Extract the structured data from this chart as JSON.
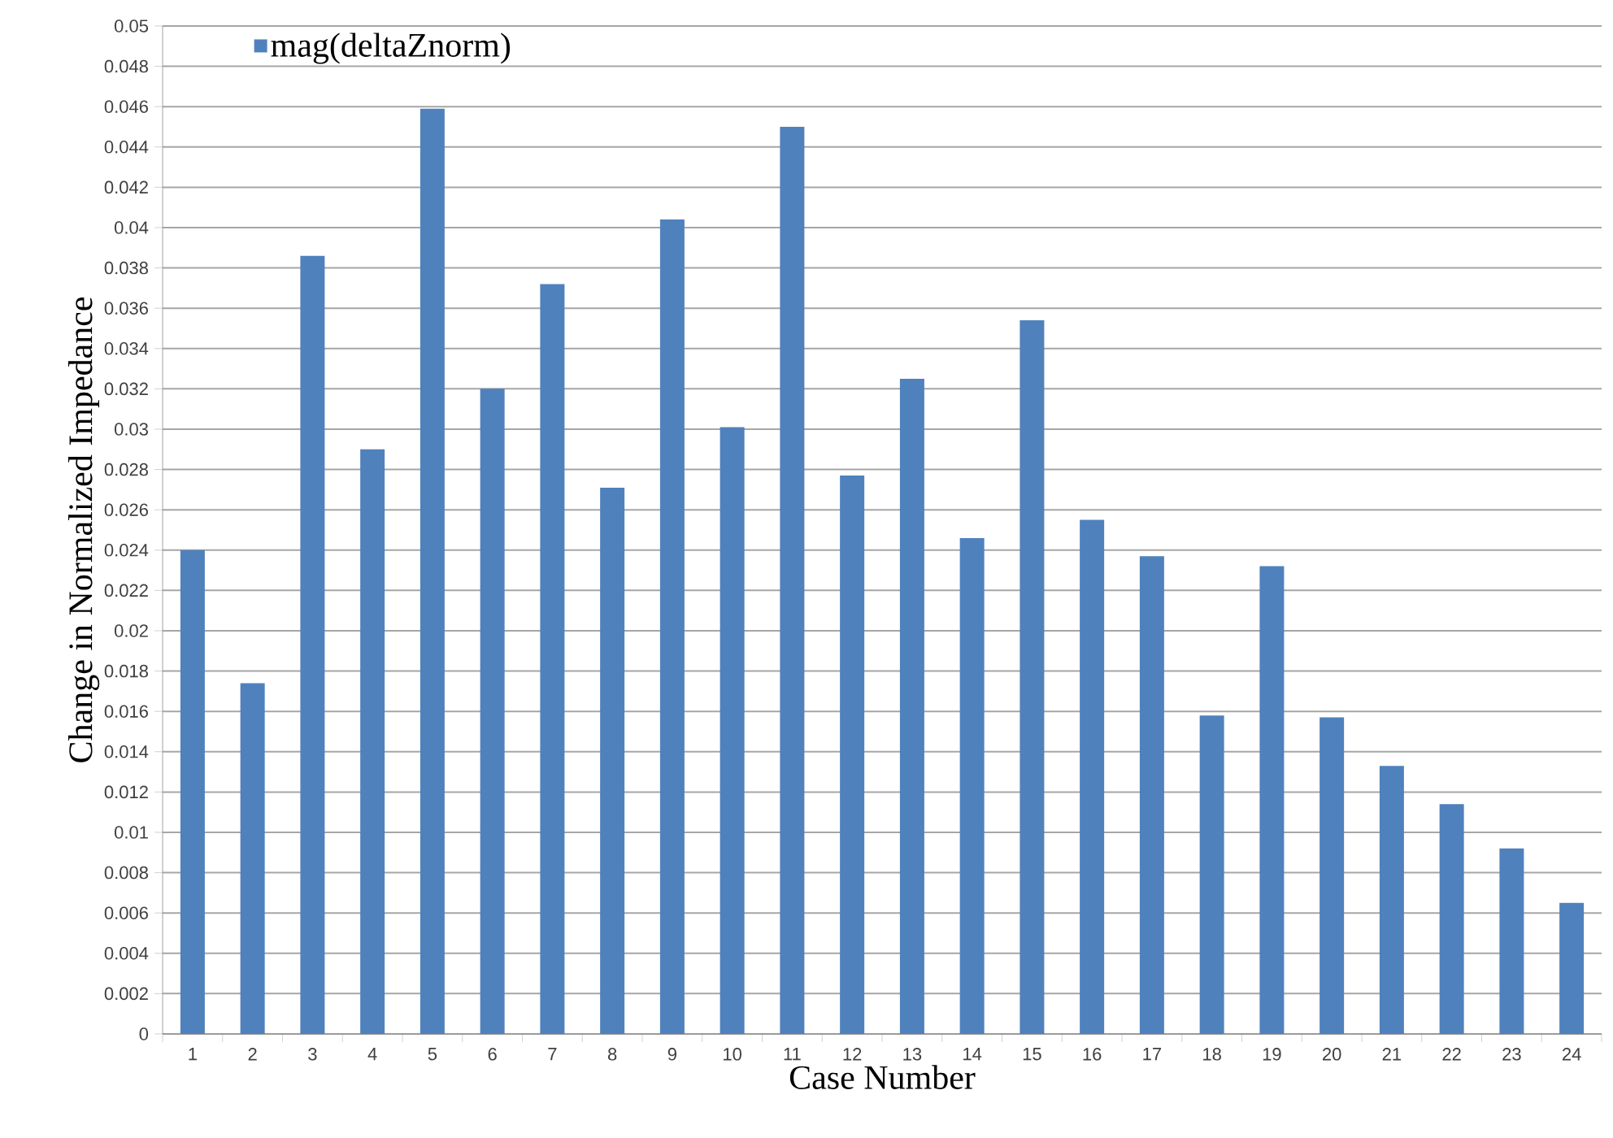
{
  "chart_data": {
    "type": "bar",
    "xlabel": "Case Number",
    "ylabel": "Change in Normalized Impedance",
    "categories": [
      "1",
      "2",
      "3",
      "4",
      "5",
      "6",
      "7",
      "8",
      "9",
      "10",
      "11",
      "12",
      "13",
      "14",
      "15",
      "16",
      "17",
      "18",
      "19",
      "20",
      "21",
      "22",
      "23",
      "24"
    ],
    "series": [
      {
        "name": "mag(deltaZnorm)",
        "color": "#4f81bd",
        "values": [
          0.024,
          0.0174,
          0.0386,
          0.029,
          0.0459,
          0.032,
          0.0372,
          0.0271,
          0.0404,
          0.0301,
          0.045,
          0.0277,
          0.0325,
          0.0246,
          0.0354,
          0.0255,
          0.0237,
          0.0158,
          0.0232,
          0.0157,
          0.0133,
          0.0114,
          0.0092,
          0.0065
        ]
      }
    ],
    "ylim": [
      0,
      0.05
    ],
    "yticks": [
      0,
      0.002,
      0.004,
      0.006,
      0.008,
      0.01,
      0.012,
      0.014,
      0.016,
      0.018,
      0.02,
      0.022,
      0.024,
      0.026,
      0.028,
      0.03,
      0.032,
      0.034,
      0.036,
      0.038,
      0.04,
      0.042,
      0.044,
      0.046,
      0.048,
      0.05
    ],
    "grid": "y",
    "legend": "top left"
  }
}
